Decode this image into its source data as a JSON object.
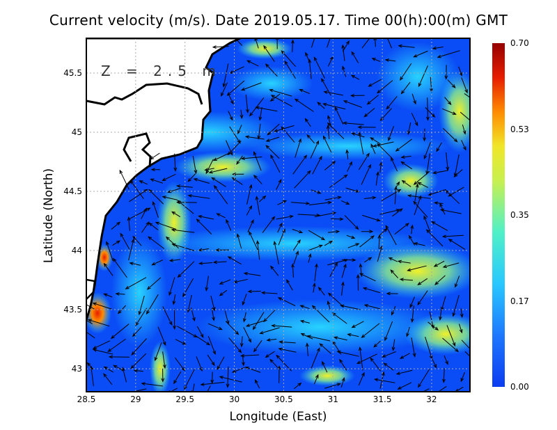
{
  "title": "Current velocity (m/s). Date 2019.05.17. Time 00(h):00(m) GMT",
  "depth_label": "Z = 2.5 m",
  "xlabel": "Longitude (East)",
  "ylabel": "Latitude (North)",
  "x_ticks": [
    "28.5",
    "29",
    "29.5",
    "30",
    "30.5",
    "31",
    "31.5",
    "32"
  ],
  "y_ticks": [
    "43",
    "43.5",
    "44",
    "44.5",
    "45",
    "45.5"
  ],
  "colorbar": {
    "ticks": [
      "0.00",
      "0.17",
      "0.35",
      "0.53",
      "0.70"
    ],
    "range": [
      0,
      0.7
    ],
    "colors": [
      "#0a3cf0",
      "#1e8cff",
      "#28d2ff",
      "#8cf08c",
      "#f0f028",
      "#ff8c00",
      "#e61e00",
      "#960000"
    ]
  },
  "map_extent": {
    "lon": [
      28.5,
      32.4
    ],
    "lat": [
      42.8,
      45.8
    ]
  },
  "land_color": "#ffffff",
  "coast_color": "#000000"
}
